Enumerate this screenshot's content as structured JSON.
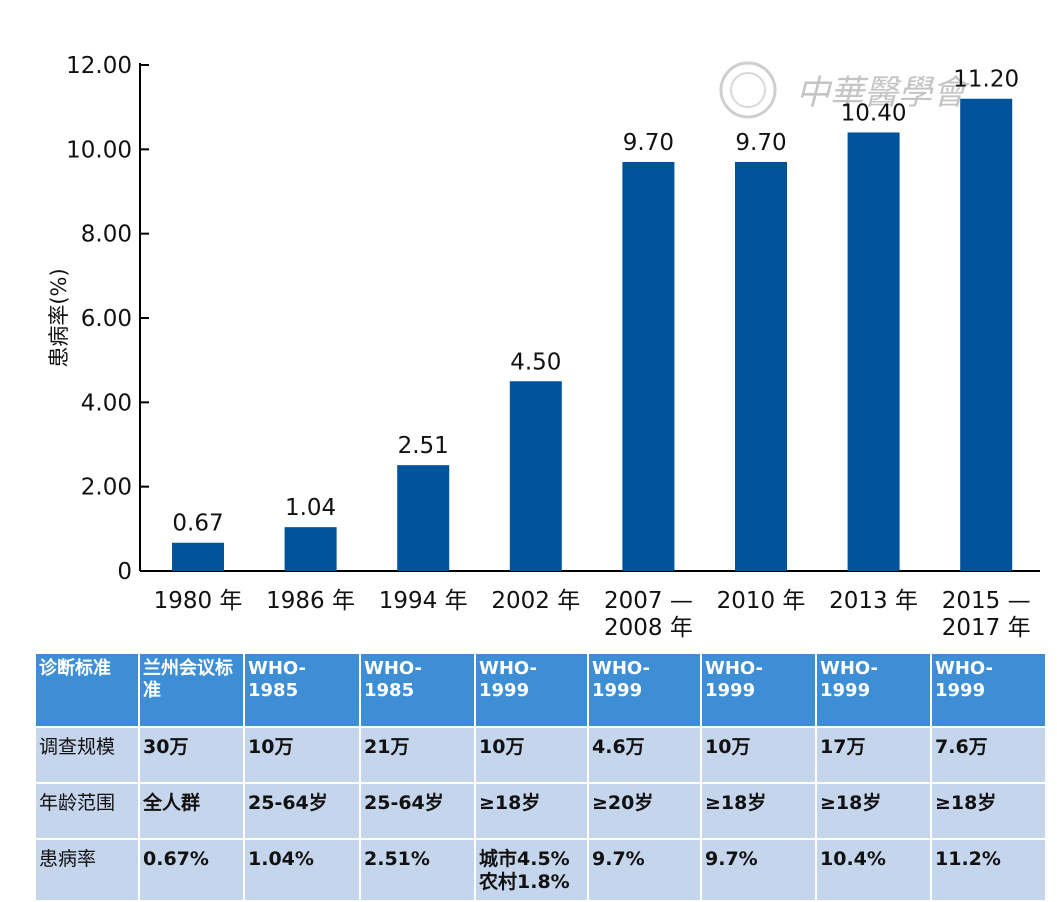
{
  "chart_data": {
    "type": "bar",
    "categories": [
      "1980 年",
      "1986 年",
      "1994 年",
      "2002 年",
      "2007 —\n2008 年",
      "2010 年",
      "2013 年",
      "2015 —\n2017 年"
    ],
    "values": [
      0.67,
      1.04,
      2.51,
      4.5,
      9.7,
      9.7,
      10.4,
      11.2
    ],
    "data_labels": [
      "0.67",
      "1.04",
      "2.51",
      "4.50",
      "9.70",
      "9.70",
      "10.40",
      "11.20"
    ],
    "title": "",
    "xlabel": "",
    "ylabel": "患病率(%)",
    "ylim": [
      0,
      12
    ],
    "yticks": [
      "0",
      "2.00",
      "4.00",
      "6.00",
      "8.00",
      "10.00",
      "12.00"
    ],
    "ytick_values": [
      0,
      2,
      4,
      6,
      8,
      10,
      12
    ],
    "grid": false,
    "bar_color": "#00529b"
  },
  "watermark": {
    "text": "中華醫學會",
    "color": "#c4c4c4"
  },
  "table": {
    "header": [
      "诊断标准",
      "兰州会议标准",
      "WHO-1985",
      "WHO-1985",
      "WHO-1999",
      "WHO-1999",
      "WHO-1999",
      "WHO-1999",
      "WHO-1999"
    ],
    "rows": [
      [
        "调查规模",
        "30万",
        "10万",
        "21万",
        "10万",
        "4.6万",
        "10万",
        "17万",
        "7.6万"
      ],
      [
        "年龄范围",
        "全人群",
        "25-64岁",
        "25-64岁",
        "≥18岁",
        "≥20岁",
        "≥18岁",
        "≥18岁",
        "≥18岁"
      ],
      [
        "患病率",
        "0.67%",
        "1.04%",
        "2.51%",
        "城市4.5%\n农村1.8%",
        "9.7%",
        "9.7%",
        "10.4%",
        "11.2%"
      ]
    ],
    "header_color": "#3d8ed5",
    "body_color": "#c5d5ec"
  }
}
